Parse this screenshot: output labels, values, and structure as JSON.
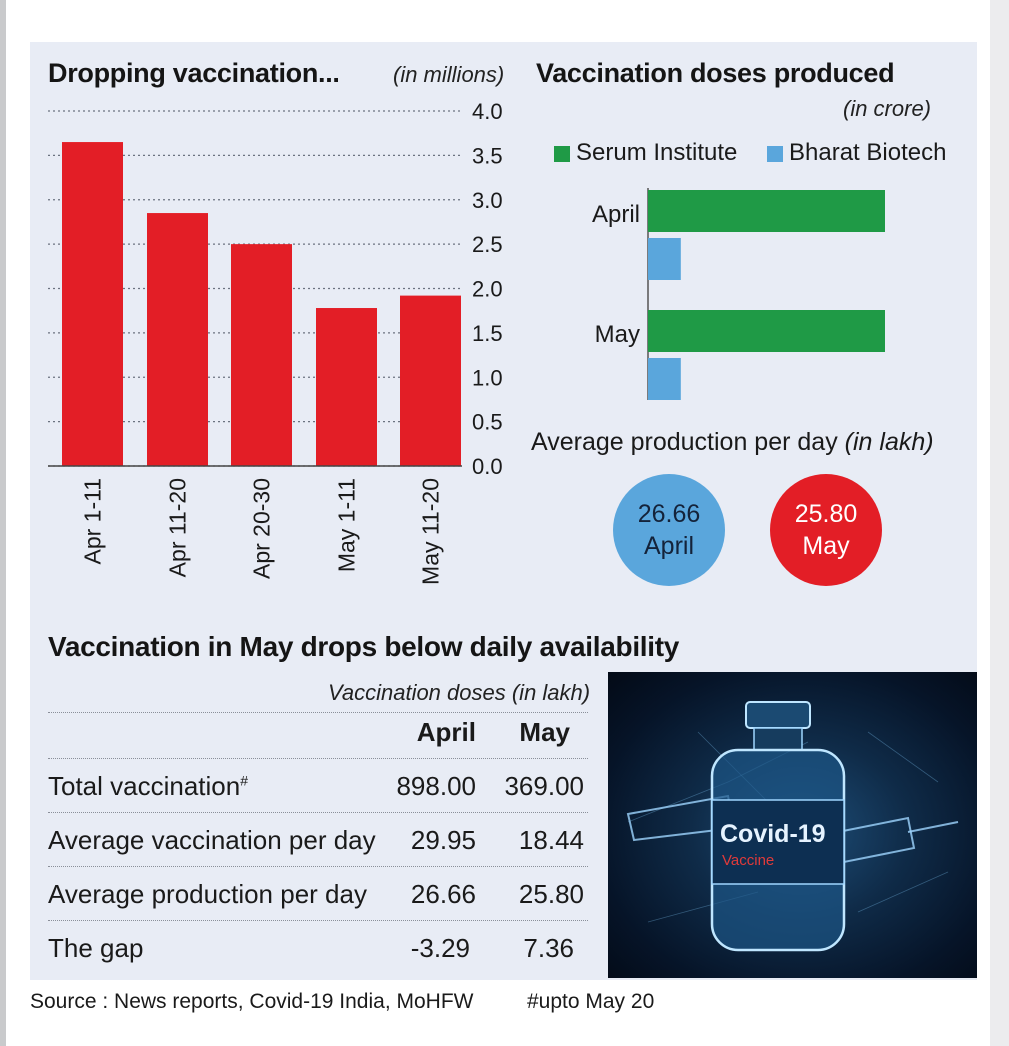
{
  "colors": {
    "bar_red": "#e31e26",
    "serum_green": "#1f9a46",
    "bharat_blue": "#5aa6dc",
    "panel_bg": "#e8ecf5"
  },
  "left_chart": {
    "title": "Dropping vaccination...",
    "unit": "(in millions)"
  },
  "right_chart": {
    "title": "Vaccination doses produced",
    "unit": "(in crore)",
    "legend": [
      "Serum Institute",
      "Bharat Biotech"
    ]
  },
  "avg_production": {
    "label": "Average production per day",
    "unit": "(in lakh)",
    "april_value": "26.66",
    "april_label": "April",
    "may_value": "25.80",
    "may_label": "May"
  },
  "chart_data": [
    {
      "type": "bar",
      "title": "Dropping vaccination...",
      "ylabel": "(in millions)",
      "categories": [
        "Apr 1-11",
        "Apr 11-20",
        "Apr 20-30",
        "May 1-11",
        "May 11-20"
      ],
      "values": [
        3.65,
        2.85,
        2.5,
        1.78,
        1.92
      ],
      "ylim": [
        0,
        4.0
      ],
      "yticks": [
        "0.0",
        "0.5",
        "1.0",
        "1.5",
        "2.0",
        "2.5",
        "3.0",
        "3.5",
        "4.0"
      ],
      "grid": true
    },
    {
      "type": "bar",
      "orientation": "horizontal",
      "title": "Vaccination doses produced",
      "unit": "(in crore)",
      "categories": [
        "April",
        "May"
      ],
      "series": [
        {
          "name": "Serum Institute",
          "values": [
            6.5,
            6.5
          ]
        },
        {
          "name": "Bharat Biotech",
          "values": [
            0.9,
            0.9
          ]
        }
      ],
      "xlim": [
        0,
        7.5
      ]
    }
  ],
  "table": {
    "title": "Vaccination in May drops below daily availability",
    "unit": "Vaccination doses (in lakh)",
    "headers": [
      "April",
      "May"
    ],
    "rows": [
      {
        "label": "Total vaccination",
        "mark": "#",
        "april": "898.00",
        "may": "369.00"
      },
      {
        "label": "Average vaccination per day",
        "april": "29.95",
        "may": "18.44"
      },
      {
        "label": "Average production per day",
        "april": "26.66",
        "may": "25.80"
      },
      {
        "label": "The gap",
        "april": "-3.29",
        "may": "7.36"
      }
    ]
  },
  "photo": {
    "label": "Covid-19",
    "sublabel": "Vaccine"
  },
  "source": "Source : News reports, Covid-19 India, MoHFW",
  "footnote": "#upto May 20"
}
